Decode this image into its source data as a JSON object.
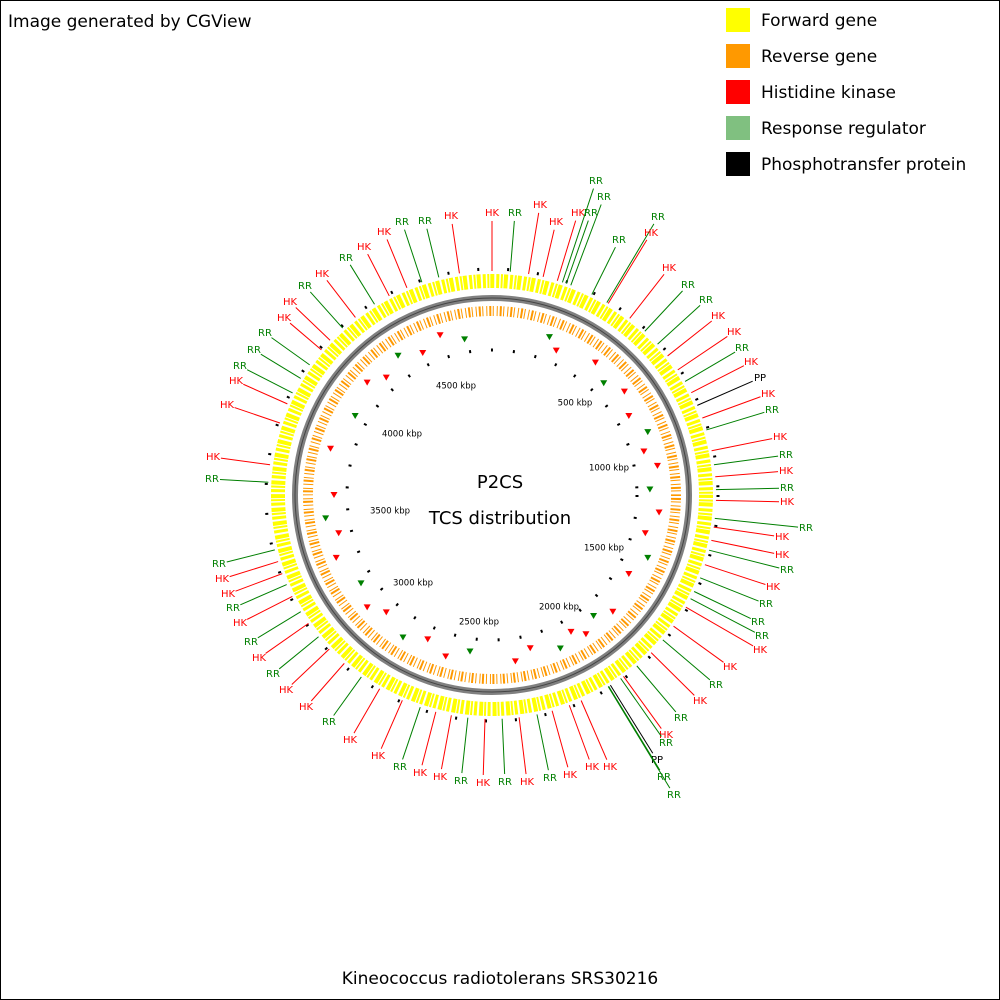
{
  "header": {
    "credit": "Image generated by CGView"
  },
  "legend": [
    {
      "label": "Forward gene",
      "color": "#ffff00"
    },
    {
      "label": "Reverse gene",
      "color": "#ff9900"
    },
    {
      "label": "Histidine kinase",
      "color": "#ff0000"
    },
    {
      "label": "Response regulator",
      "color": "#80c080"
    },
    {
      "label": "Phosphotransfer protein",
      "color": "#000000"
    }
  ],
  "center": {
    "title": "P2CS",
    "subtitle": "TCS distribution"
  },
  "scale_labels": [
    "500 kbp",
    "1000 kbp",
    "1500 kbp",
    "2000 kbp",
    "2500 kbp",
    "3000 kbp",
    "3500 kbp",
    "4000 kbp",
    "4500 kbp"
  ],
  "features": [
    {
      "label": "HK",
      "color": "#ff0000"
    },
    {
      "label": "HK",
      "color": "#ff0000"
    },
    {
      "label": "RR",
      "color": "#007f00"
    },
    {
      "label": "HK",
      "color": "#ff0000"
    },
    {
      "label": "HK",
      "color": "#ff0000"
    },
    {
      "label": "HK",
      "color": "#ff0000"
    },
    {
      "label": "RR",
      "color": "#007f00"
    },
    {
      "label": "RR",
      "color": "#007f00"
    },
    {
      "label": "RR",
      "color": "#007f00"
    },
    {
      "label": "RR",
      "color": "#007f00"
    },
    {
      "label": "RR",
      "color": "#007f00"
    },
    {
      "label": "HK",
      "color": "#ff0000"
    },
    {
      "label": "HK",
      "color": "#ff0000"
    },
    {
      "label": "RR",
      "color": "#007f00"
    },
    {
      "label": "RR",
      "color": "#007f00"
    },
    {
      "label": "HK",
      "color": "#ff0000"
    },
    {
      "label": "HK",
      "color": "#ff0000"
    },
    {
      "label": "RR",
      "color": "#007f00"
    },
    {
      "label": "HK",
      "color": "#ff0000"
    },
    {
      "label": "PP",
      "color": "#000000"
    },
    {
      "label": "HK",
      "color": "#ff0000"
    },
    {
      "label": "RR",
      "color": "#007f00"
    },
    {
      "label": "HK",
      "color": "#ff0000"
    },
    {
      "label": "RR",
      "color": "#007f00"
    },
    {
      "label": "HK",
      "color": "#ff0000"
    },
    {
      "label": "RR",
      "color": "#007f00"
    },
    {
      "label": "HK",
      "color": "#ff0000"
    },
    {
      "label": "RR",
      "color": "#007f00"
    },
    {
      "label": "HK",
      "color": "#ff0000"
    },
    {
      "label": "HK",
      "color": "#ff0000"
    },
    {
      "label": "RR",
      "color": "#007f00"
    },
    {
      "label": "HK",
      "color": "#ff0000"
    },
    {
      "label": "RR",
      "color": "#007f00"
    },
    {
      "label": "RR",
      "color": "#007f00"
    },
    {
      "label": "RR",
      "color": "#007f00"
    },
    {
      "label": "HK",
      "color": "#ff0000"
    },
    {
      "label": "HK",
      "color": "#ff0000"
    },
    {
      "label": "RR",
      "color": "#007f00"
    },
    {
      "label": "HK",
      "color": "#ff0000"
    },
    {
      "label": "RR",
      "color": "#007f00"
    },
    {
      "label": "HK",
      "color": "#ff0000"
    },
    {
      "label": "RR",
      "color": "#007f00"
    },
    {
      "label": "PP",
      "color": "#000000"
    },
    {
      "label": "RR",
      "color": "#007f00"
    },
    {
      "label": "RR",
      "color": "#007f00"
    },
    {
      "label": "HK",
      "color": "#ff0000"
    },
    {
      "label": "HK",
      "color": "#ff0000"
    },
    {
      "label": "HK",
      "color": "#ff0000"
    },
    {
      "label": "RR",
      "color": "#007f00"
    },
    {
      "label": "HK",
      "color": "#ff0000"
    },
    {
      "label": "RR",
      "color": "#007f00"
    },
    {
      "label": "HK",
      "color": "#ff0000"
    },
    {
      "label": "RR",
      "color": "#007f00"
    },
    {
      "label": "HK",
      "color": "#ff0000"
    },
    {
      "label": "HK",
      "color": "#ff0000"
    },
    {
      "label": "RR",
      "color": "#007f00"
    },
    {
      "label": "HK",
      "color": "#ff0000"
    },
    {
      "label": "HK",
      "color": "#ff0000"
    },
    {
      "label": "RR",
      "color": "#007f00"
    },
    {
      "label": "HK",
      "color": "#ff0000"
    },
    {
      "label": "HK",
      "color": "#ff0000"
    },
    {
      "label": "RR",
      "color": "#007f00"
    },
    {
      "label": "HK",
      "color": "#ff0000"
    },
    {
      "label": "RR",
      "color": "#007f00"
    },
    {
      "label": "HK",
      "color": "#ff0000"
    },
    {
      "label": "RR",
      "color": "#007f00"
    },
    {
      "label": "HK",
      "color": "#ff0000"
    },
    {
      "label": "HK",
      "color": "#ff0000"
    },
    {
      "label": "RR",
      "color": "#007f00"
    },
    {
      "label": "RR",
      "color": "#007f00"
    },
    {
      "label": "HK",
      "color": "#ff0000"
    },
    {
      "label": "HK",
      "color": "#ff0000"
    },
    {
      "label": "HK",
      "color": "#ff0000"
    },
    {
      "label": "RR",
      "color": "#007f00"
    },
    {
      "label": "RR",
      "color": "#007f00"
    },
    {
      "label": "HK",
      "color": "#ff0000"
    },
    {
      "label": "RR",
      "color": "#007f00"
    },
    {
      "label": "HK",
      "color": "#ff0000"
    },
    {
      "label": "RR",
      "color": "#007f00"
    },
    {
      "label": "HK",
      "color": "#ff0000"
    },
    {
      "label": "RR",
      "color": "#007f00"
    },
    {
      "label": "HK",
      "color": "#ff0000"
    },
    {
      "label": "HK",
      "color": "#ff0000"
    },
    {
      "label": "RR",
      "color": "#007f00"
    },
    {
      "label": "RR",
      "color": "#007f00"
    }
  ],
  "footer": {
    "organism": "Kineococcus radiotolerans SRS30216"
  }
}
